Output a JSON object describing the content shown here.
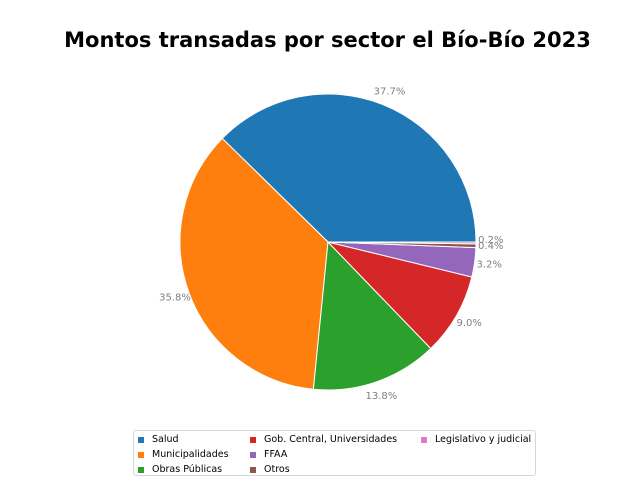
{
  "chart_data": {
    "type": "pie",
    "title": "Montos transadas por sector el Bío-Bío 2023",
    "slices": [
      {
        "label": "Salud",
        "value": 37.7,
        "pct_label": "37.7%",
        "color": "#1f77b4"
      },
      {
        "label": "Municipalidades",
        "value": 35.8,
        "pct_label": "35.8%",
        "color": "#ff7f0e"
      },
      {
        "label": "Obras Públicas",
        "value": 13.8,
        "pct_label": "13.8%",
        "color": "#2ca02c"
      },
      {
        "label": "Gob. Central, Universidades",
        "value": 9.0,
        "pct_label": "9.0%",
        "color": "#d62728"
      },
      {
        "label": "FFAA",
        "value": 3.2,
        "pct_label": "3.2%",
        "color": "#9467bd"
      },
      {
        "label": "Otros",
        "value": 0.4,
        "pct_label": "0.4%",
        "color": "#8c564b"
      },
      {
        "label": "Legislativo y judicial",
        "value": 0.2,
        "pct_label": "0.2%",
        "color": "#e377c2"
      }
    ],
    "legend_position": "bottom"
  }
}
